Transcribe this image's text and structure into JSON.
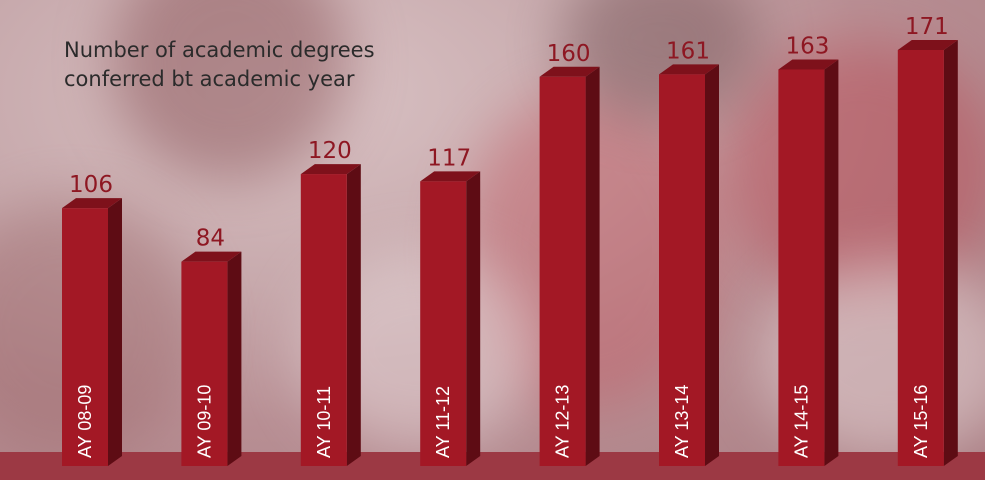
{
  "chart_data": {
    "type": "bar",
    "title": "Number of academic degrees conferred bt academic year",
    "categories": [
      "AY 08-09",
      "AY 09-10",
      "AY 10-11",
      "AY 11-12",
      "AY 12-13",
      "AY 13-14",
      "AY 14-15",
      "AY 15-16"
    ],
    "values": [
      106,
      84,
      120,
      117,
      160,
      161,
      163,
      171
    ],
    "xlabel": "",
    "ylabel": "",
    "ylim": [
      0,
      171
    ],
    "grid": false,
    "legend": "none",
    "colors": {
      "bar_front": "#a31825",
      "bar_side": "#5e0c14",
      "bar_top": "#7e111b",
      "value_label": "#8e1722",
      "category_label": "#ffffff"
    }
  }
}
